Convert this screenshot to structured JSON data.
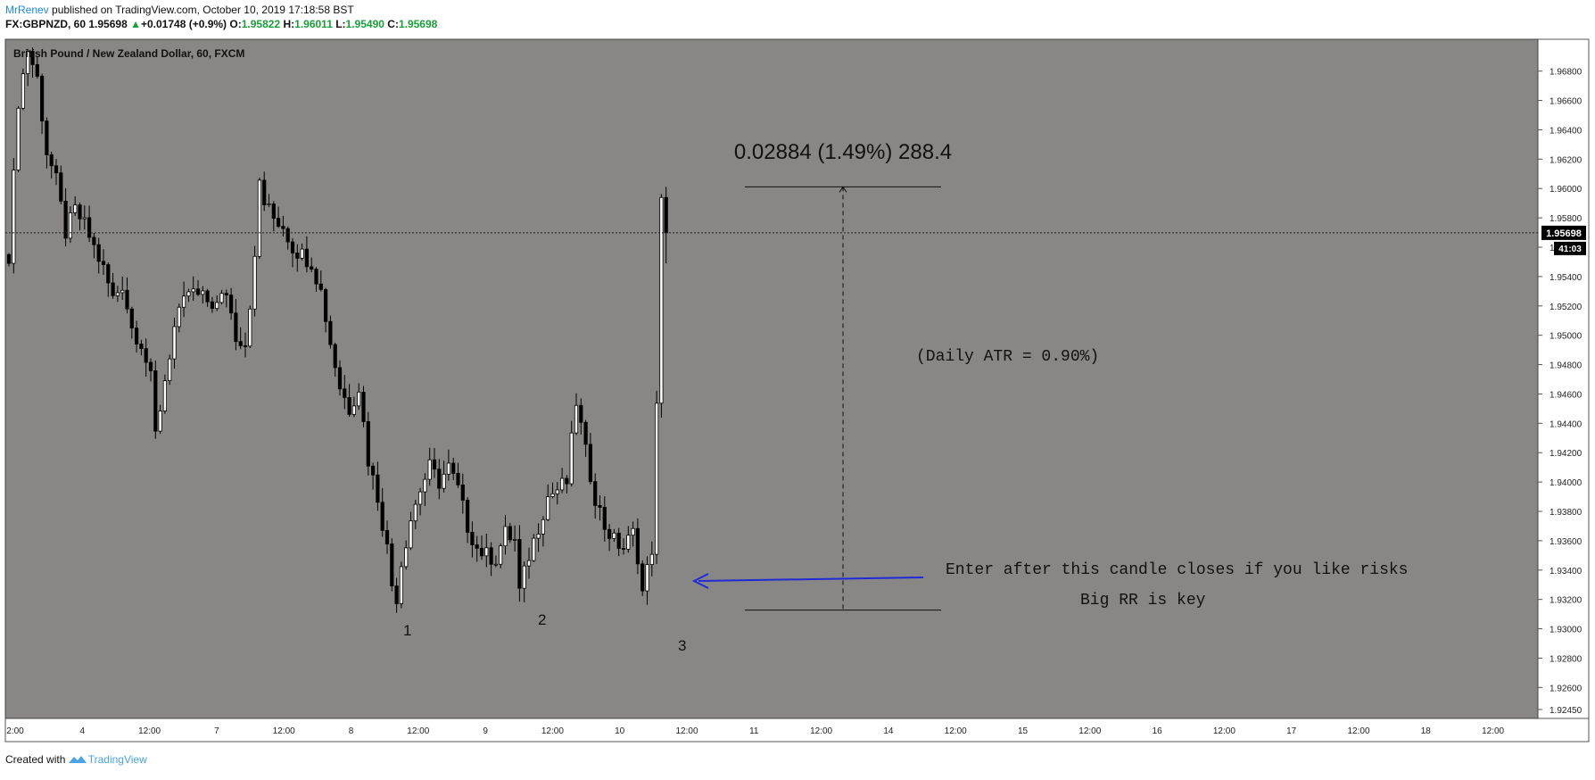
{
  "header": {
    "author": "MrRenev",
    "published_text": "published on TradingView.com, October 10, 2019 17:18:58 BST",
    "symbol_line": "FX:GBPNZD, 60",
    "last": "1.95698",
    "change_arrow": "▲",
    "change": "+0.01748 (+0.9%)",
    "o_label": "O:",
    "o": "1.95822",
    "h_label": "H:",
    "h": "1.96011",
    "l_label": "L:",
    "l": "1.95490",
    "c_label": "C:",
    "c": "1.95698"
  },
  "footer": {
    "created_with": "Created with",
    "brand": "TradingView"
  },
  "colors": {
    "chart_bg": "#898785",
    "up_candle": "#ffffff",
    "down_candle": "#000000",
    "arrow": "#1f2bd6",
    "green": "#1a9e3a",
    "brand_blue": "#1e88e5"
  },
  "chart_data": {
    "type": "candlestick",
    "title": "British Pound / New Zealand Dollar, 60, FXCM",
    "ylim": [
      1.9245,
      1.9695
    ],
    "y_ticks": [
      "1.96800",
      "1.96600",
      "1.96400",
      "1.96200",
      "1.96000",
      "1.95800",
      "1.95600",
      "1.95400",
      "1.95200",
      "1.95000",
      "1.94800",
      "1.94600",
      "1.94400",
      "1.94200",
      "1.94000",
      "1.93800",
      "1.93600",
      "1.93400",
      "1.93200",
      "1.93000",
      "1.92800",
      "1.92600",
      "1.92450"
    ],
    "x_ticks": [
      "2:00",
      "4",
      "12:00",
      "7",
      "12:00",
      "8",
      "12:00",
      "9",
      "12:00",
      "10",
      "12:00",
      "11",
      "12:00",
      "14",
      "12:00",
      "15",
      "12:00",
      "16",
      "12:00",
      "17",
      "12:00",
      "18",
      "12:00"
    ],
    "last_price_label": "1.95698",
    "countdown_label": "41:03",
    "last_price": 1.95698,
    "waypoints": [
      [
        0,
        1.9555
      ],
      [
        2,
        1.966
      ],
      [
        4,
        1.9695
      ],
      [
        6,
        1.9675
      ],
      [
        8,
        1.9625
      ],
      [
        10,
        1.9605
      ],
      [
        12,
        1.957
      ],
      [
        14,
        1.9585
      ],
      [
        16,
        1.9575
      ],
      [
        18,
        1.956
      ],
      [
        20,
        1.9545
      ],
      [
        22,
        1.9525
      ],
      [
        24,
        1.9535
      ],
      [
        26,
        1.9505
      ],
      [
        28,
        1.9495
      ],
      [
        30,
        1.947
      ],
      [
        31,
        1.9432
      ],
      [
        33,
        1.947
      ],
      [
        35,
        1.9505
      ],
      [
        38,
        1.953
      ],
      [
        41,
        1.9525
      ],
      [
        44,
        1.952
      ],
      [
        46,
        1.953
      ],
      [
        48,
        1.95
      ],
      [
        50,
        1.9495
      ],
      [
        52,
        1.955
      ],
      [
        53,
        1.9605
      ],
      [
        54,
        1.959
      ],
      [
        56,
        1.958
      ],
      [
        58,
        1.9575
      ],
      [
        60,
        1.956
      ],
      [
        62,
        1.9555
      ],
      [
        64,
        1.955
      ],
      [
        66,
        1.953
      ],
      [
        68,
        1.9495
      ],
      [
        70,
        1.9465
      ],
      [
        72,
        1.945
      ],
      [
        74,
        1.9465
      ],
      [
        76,
        1.9415
      ],
      [
        78,
        1.939
      ],
      [
        80,
        1.9355
      ],
      [
        81,
        1.933
      ],
      [
        82,
        1.9322
      ],
      [
        83,
        1.9345
      ],
      [
        85,
        1.9375
      ],
      [
        87,
        1.9395
      ],
      [
        89,
        1.941
      ],
      [
        91,
        1.94
      ],
      [
        93,
        1.941
      ],
      [
        95,
        1.9395
      ],
      [
        97,
        1.937
      ],
      [
        99,
        1.9355
      ],
      [
        101,
        1.935
      ],
      [
        103,
        1.9348
      ],
      [
        105,
        1.9365
      ],
      [
        107,
        1.936
      ],
      [
        108,
        1.9325
      ],
      [
        110,
        1.935
      ],
      [
        112,
        1.937
      ],
      [
        114,
        1.939
      ],
      [
        116,
        1.9395
      ],
      [
        118,
        1.94
      ],
      [
        120,
        1.9455
      ],
      [
        122,
        1.942
      ],
      [
        124,
        1.939
      ],
      [
        126,
        1.937
      ],
      [
        128,
        1.936
      ],
      [
        130,
        1.9355
      ],
      [
        132,
        1.9365
      ],
      [
        133,
        1.935
      ],
      [
        134,
        1.9325
      ],
      [
        135,
        1.934
      ],
      [
        136,
        1.9355
      ],
      [
        137,
        1.945
      ],
      [
        138,
        1.959
      ],
      [
        139,
        1.95698
      ]
    ],
    "measure_label": "0.02884 (1.49%) 288.4",
    "measure_top": 1.96011,
    "measure_bottom": 1.93127,
    "annotations": {
      "atr": "(Daily ATR = 0.90%)",
      "enter": "Enter after this candle closes if you like risks",
      "rr": "Big RR is key",
      "label1": "1",
      "label2": "2",
      "label3": "3"
    }
  }
}
